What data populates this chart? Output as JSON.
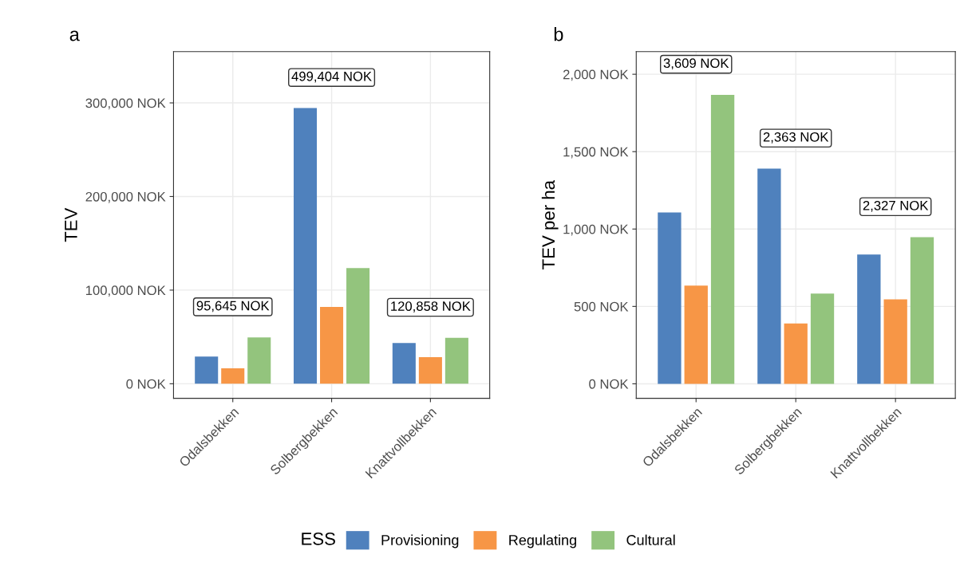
{
  "chart_data": [
    {
      "type": "bar",
      "title": "a",
      "ylabel": "TEV",
      "categories": [
        "Odalsbekken",
        "Solbergbekken",
        "Knattvollbekken"
      ],
      "series": [
        {
          "name": "Provisioning",
          "color": "#4f81bd",
          "values": [
            29000,
            294500,
            43500
          ]
        },
        {
          "name": "Regulating",
          "color": "#f79646",
          "values": [
            16500,
            82000,
            28500
          ]
        },
        {
          "name": "Cultural",
          "color": "#93c47d",
          "values": [
            49500,
            123500,
            49000
          ]
        }
      ],
      "ylim": [
        -15600,
        354700
      ],
      "yticks": [
        {
          "value": 0,
          "label": "0 NOK"
        },
        {
          "value": 100000,
          "label": "100,000 NOK"
        },
        {
          "value": 200000,
          "label": "200,000 NOK"
        },
        {
          "value": 300000,
          "label": "300,000 NOK"
        }
      ],
      "annotations": [
        "95,645 NOK",
        "499,404 NOK",
        "120,858 NOK"
      ],
      "grid": true,
      "legend": "bottom",
      "legend_title": "ESS"
    },
    {
      "type": "bar",
      "title": "b",
      "ylabel": "TEV per ha",
      "categories": [
        "Odalsbekken",
        "Solbergbekken",
        "Knattvollbekken"
      ],
      "series": [
        {
          "name": "Provisioning",
          "color": "#4f81bd",
          "values": [
            1107,
            1390,
            835
          ]
        },
        {
          "name": "Regulating",
          "color": "#f79646",
          "values": [
            635,
            390,
            545
          ]
        },
        {
          "name": "Cultural",
          "color": "#93c47d",
          "values": [
            1867,
            583,
            947
          ]
        }
      ],
      "ylim": [
        -94,
        2146
      ],
      "yticks": [
        {
          "value": 0,
          "label": "0 NOK"
        },
        {
          "value": 500,
          "label": "500 NOK"
        },
        {
          "value": 1000,
          "label": "1,000 NOK"
        },
        {
          "value": 1500,
          "label": "1,500 NOK"
        },
        {
          "value": 2000,
          "label": "2,000 NOK"
        }
      ],
      "annotations": [
        "3,609 NOK",
        "2,363 NOK",
        "2,327 NOK"
      ],
      "grid": true
    }
  ]
}
